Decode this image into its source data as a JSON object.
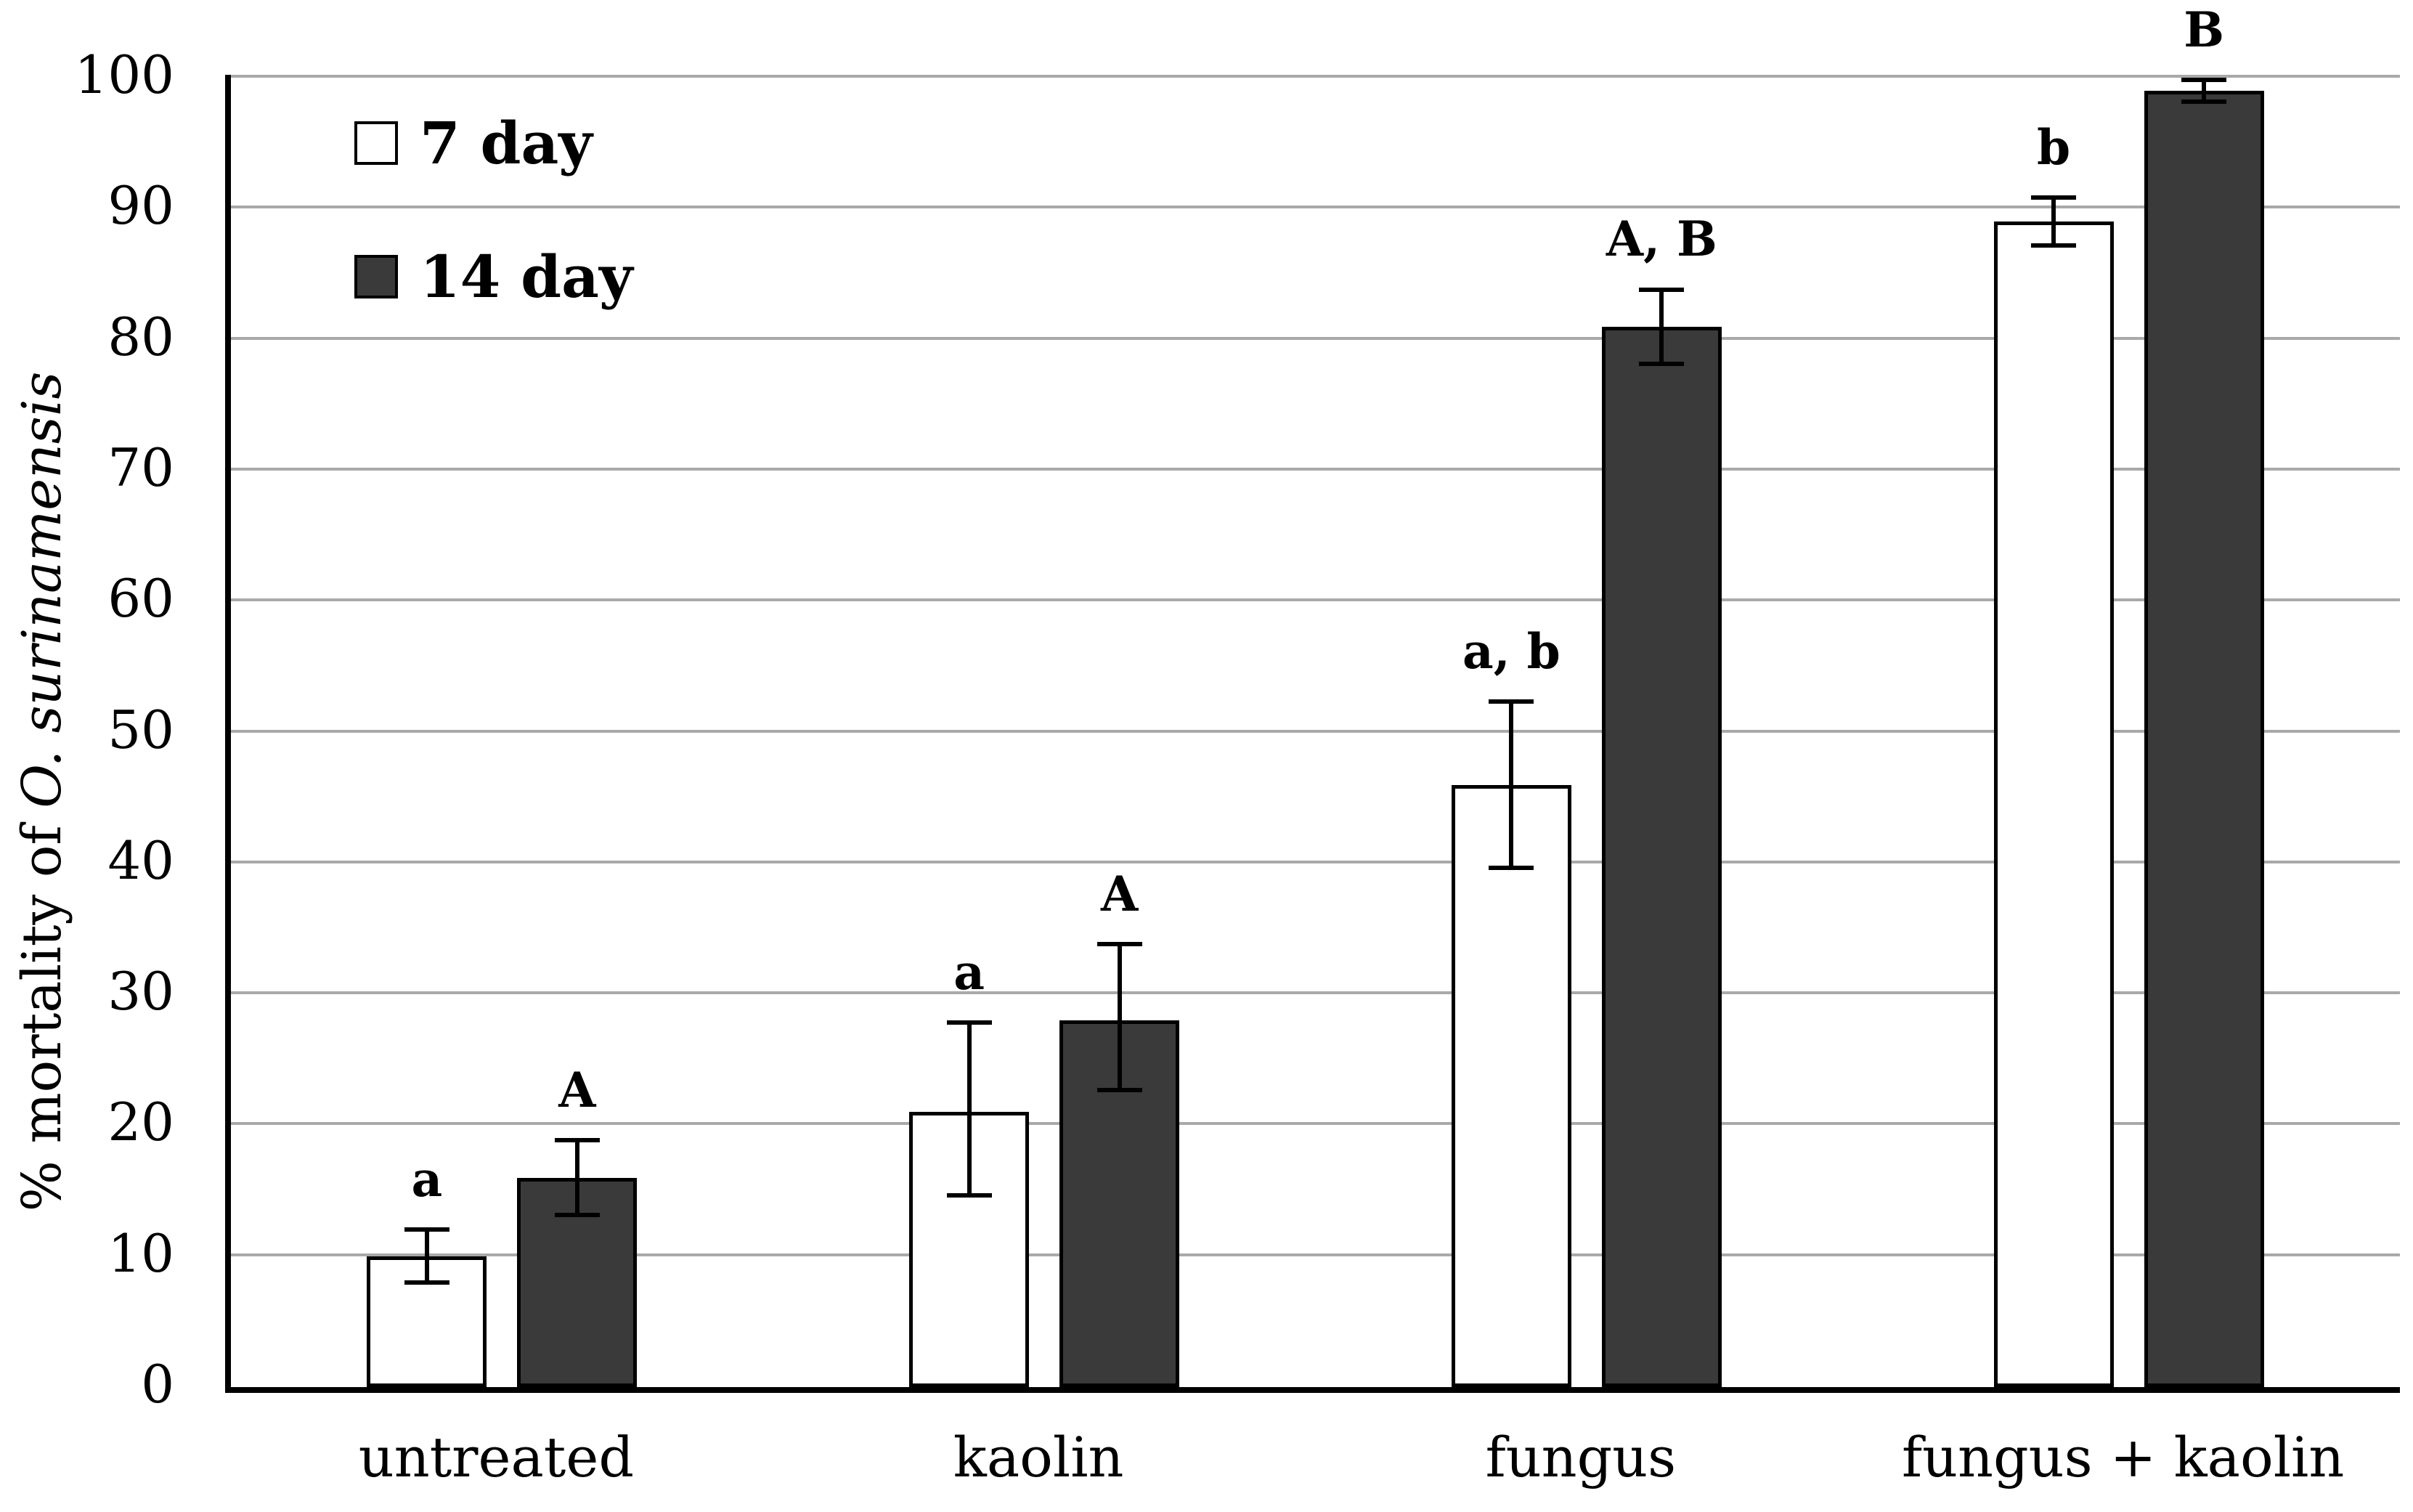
{
  "figure": {
    "background": "#ffffff",
    "black": "#000000"
  },
  "chart_data": {
    "type": "bar",
    "title": "",
    "categories": [
      "untreated",
      "kaolin",
      "fungus",
      "fungus + kaolin"
    ],
    "series": [
      {
        "name": "7 day",
        "fill": "#ffffff",
        "border": "#000000",
        "values": [
          10,
          21,
          46,
          89
        ],
        "err_low": [
          7.8,
          14.5,
          39.5,
          87
        ],
        "err_high": [
          12.2,
          28,
          52.5,
          91
        ],
        "sig_labels": [
          "a",
          "a",
          "a, b",
          "b"
        ]
      },
      {
        "name": "14 day",
        "fill": "#3a3a3a",
        "border": "#000000",
        "values": [
          16,
          28,
          81,
          99
        ],
        "err_low": [
          13,
          22.5,
          78,
          98
        ],
        "err_high": [
          19,
          34,
          84,
          100
        ],
        "sig_labels": [
          "A",
          "A",
          "A, B",
          "B"
        ]
      }
    ],
    "ylabel_prefix": "% mortality of ",
    "ylabel_species": "O. surinamensis",
    "xlabel": "",
    "ylim": [
      0,
      100
    ],
    "yticks": [
      0,
      10,
      20,
      30,
      40,
      50,
      60,
      70,
      80,
      90,
      100
    ],
    "grid": true,
    "gridline_color": "#a9a9a9",
    "legend_position": "top-left-inside"
  }
}
